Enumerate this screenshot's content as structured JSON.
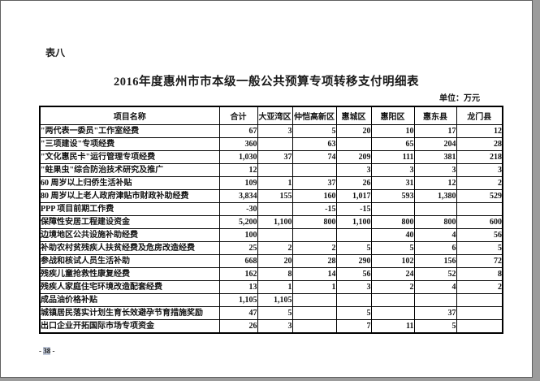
{
  "page": {
    "table_label": "表八",
    "title": "2016年度惠州市市本级一般公共预算专项转移支付明细表",
    "unit_label": "单位：万元",
    "footer": {
      "prefix": "- ",
      "page_number": "38",
      "suffix": " -"
    }
  },
  "table": {
    "columns": [
      "项目名称",
      "合计",
      "大亚湾区",
      "仲恺高新区",
      "惠城区",
      "惠阳区",
      "惠东县",
      "龙门县"
    ],
    "rows": [
      {
        "name": "\"两代表一委员\"工作室经费",
        "values": [
          "67",
          "3",
          "5",
          "20",
          "10",
          "17",
          "12"
        ]
      },
      {
        "name": "\"三项建设\"专项经费",
        "values": [
          "360",
          "",
          "63",
          "",
          "65",
          "204",
          "28"
        ]
      },
      {
        "name": "\"文化惠民卡\"运行管理专项经费",
        "values": [
          "1,030",
          "37",
          "74",
          "209",
          "111",
          "381",
          "218"
        ]
      },
      {
        "name": "\"蛀果虫\"综合防治技术研究及推广",
        "values": [
          "12",
          "",
          "",
          "3",
          "3",
          "3",
          "3"
        ]
      },
      {
        "name": "60 周岁以上归侨生活补贴",
        "values": [
          "109",
          "1",
          "37",
          "26",
          "31",
          "12",
          "2"
        ]
      },
      {
        "name": "80 周岁以上老人政府津贴市财政补助经费",
        "values": [
          "3,834",
          "155",
          "160",
          "1,017",
          "593",
          "1,380",
          "529"
        ]
      },
      {
        "name": "PPP 项目前期工作费",
        "values": [
          "-30",
          "",
          "-15",
          "-15",
          "",
          "",
          ""
        ]
      },
      {
        "name": "保障性安居工程建设资金",
        "values": [
          "5,200",
          "1,100",
          "800",
          "1,100",
          "800",
          "800",
          "600"
        ]
      },
      {
        "name": "边境地区公共设施补助经费",
        "values": [
          "100",
          "",
          "",
          "",
          "40",
          "4",
          "56"
        ]
      },
      {
        "name": "补助农村贫残疾人扶贫经费及危房改造经费",
        "values": [
          "25",
          "2",
          "2",
          "5",
          "5",
          "6",
          "5"
        ]
      },
      {
        "name": "参战和核试人员生活补助",
        "values": [
          "668",
          "20",
          "28",
          "290",
          "102",
          "156",
          "72"
        ]
      },
      {
        "name": "残疾儿童抢救性康复经费",
        "values": [
          "162",
          "8",
          "14",
          "56",
          "24",
          "52",
          "8"
        ]
      },
      {
        "name": "残疾人家庭住宅环境改造配套经费",
        "values": [
          "13",
          "1",
          "1",
          "3",
          "2",
          "4",
          "2"
        ]
      },
      {
        "name": "成品油价格补贴",
        "values": [
          "1,105",
          "1,105",
          "",
          "",
          "",
          "",
          ""
        ]
      },
      {
        "name": "城镇居民落实计划生育长效避孕节育措施奖励",
        "values": [
          "47",
          "5",
          "",
          "5",
          "",
          "37",
          ""
        ]
      },
      {
        "name": "出口企业开拓国际市场专项资金",
        "values": [
          "26",
          "3",
          "",
          "7",
          "11",
          "5",
          ""
        ]
      }
    ]
  }
}
